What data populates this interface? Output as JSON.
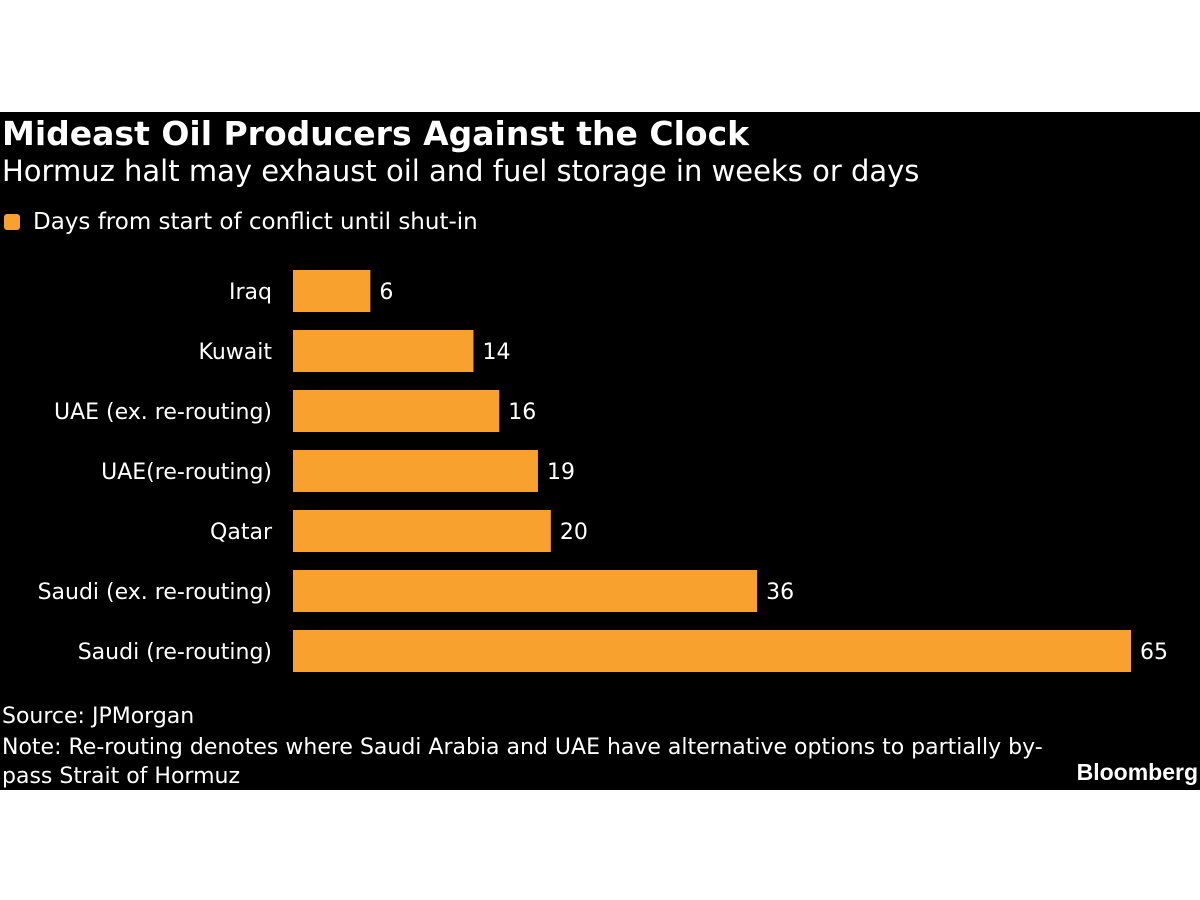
{
  "header": {
    "title": "Mideast Oil Producers Against the Clock",
    "subtitle": "Hormuz halt may exhaust oil and fuel storage in weeks or days"
  },
  "legend": {
    "label": "Days from start of conflict until shut-in"
  },
  "footer": {
    "source": "Source: JPMorgan",
    "note": "Note: Re-routing denotes where Saudi Arabia and UAE have alternative options to partially by-pass Strait of Hormuz",
    "brand": "Bloomberg"
  },
  "colors": {
    "bar": "#F9A12E",
    "background": "#000000",
    "text": "#FFFFFF"
  },
  "chart_data": {
    "type": "bar",
    "orientation": "horizontal",
    "title": "Mideast Oil Producers Against the Clock",
    "subtitle": "Hormuz halt may exhaust oil and fuel storage in weeks or days",
    "categories": [
      "Iraq",
      "Kuwait",
      "UAE (ex. re-routing)",
      "UAE(re-routing)",
      "Qatar",
      "Saudi (ex. re-routing)",
      "Saudi (re-routing)"
    ],
    "series": [
      {
        "name": "Days from start of conflict until shut-in",
        "values": [
          6,
          14,
          16,
          19,
          20,
          36,
          65
        ]
      }
    ],
    "xlim": [
      0,
      65
    ],
    "xlabel": "",
    "ylabel": "",
    "grid": false,
    "legend_position": "top-left"
  }
}
